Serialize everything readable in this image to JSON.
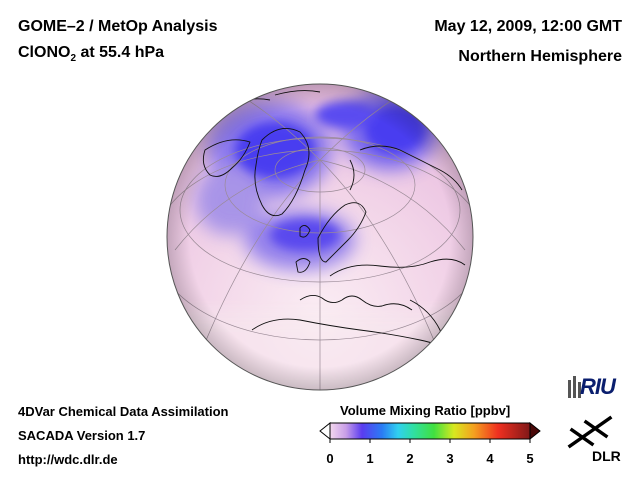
{
  "header": {
    "title_line1": "GOME–2 / MetOp Analysis",
    "species": "ClONO",
    "species_subscript": "2",
    "level_text": " at 55.4 hPa",
    "date": "May 12, 2009, 12:00 GMT",
    "region": "Northern Hemisphere"
  },
  "footer": {
    "line1": "4DVar Chemical Data Assimilation",
    "line2": "SACADA Version 1.7",
    "line3": "http://wdc.dlr.de"
  },
  "colorbar": {
    "title": "Volume Mixing Ratio [ppbv]",
    "ticks": [
      "0",
      "1",
      "2",
      "3",
      "4",
      "5"
    ],
    "min": 0,
    "max": 5
  },
  "logos": {
    "riu": "RIU",
    "dlr": "DLR"
  },
  "map": {
    "projection": "orthographic",
    "field_colors": {
      "low": "#4a3cf0",
      "mid": "#d9a6e6",
      "high": "#f6e6ee"
    }
  }
}
